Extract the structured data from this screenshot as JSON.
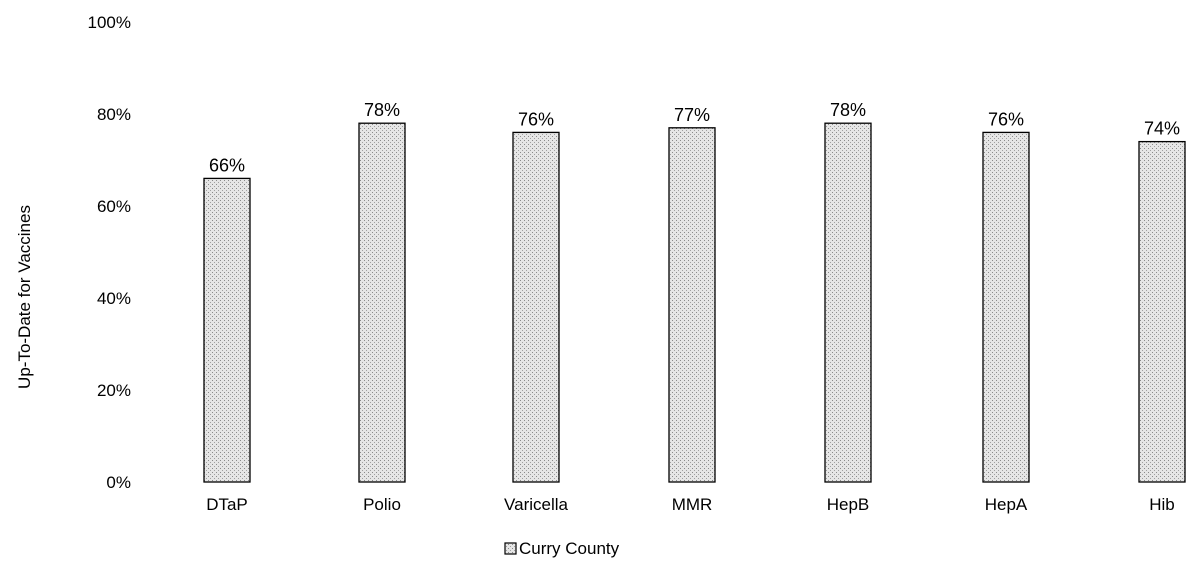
{
  "chart_data": {
    "type": "bar",
    "categories": [
      "DTaP",
      "Polio",
      "Varicella",
      "MMR",
      "HepB",
      "HepA",
      "Hib"
    ],
    "series": [
      {
        "name": "Curry County",
        "values": [
          66,
          78,
          76,
          77,
          78,
          76,
          74
        ]
      }
    ],
    "data_labels": [
      "66%",
      "78%",
      "76%",
      "77%",
      "78%",
      "76%",
      "74%"
    ],
    "ylabel": "Up-To-Date for Vaccines",
    "xlabel": "",
    "ylim": [
      0,
      100
    ],
    "y_ticks": [
      0,
      20,
      40,
      60,
      80,
      100
    ],
    "y_tick_labels": [
      "0%",
      "20%",
      "40%",
      "60%",
      "80%",
      "100%"
    ],
    "grid": false,
    "legend": {
      "position": "bottom",
      "entries": [
        "Curry County"
      ]
    },
    "colors": {
      "bar_fill": "#d6d6d6",
      "bar_stroke": "#000000"
    }
  }
}
